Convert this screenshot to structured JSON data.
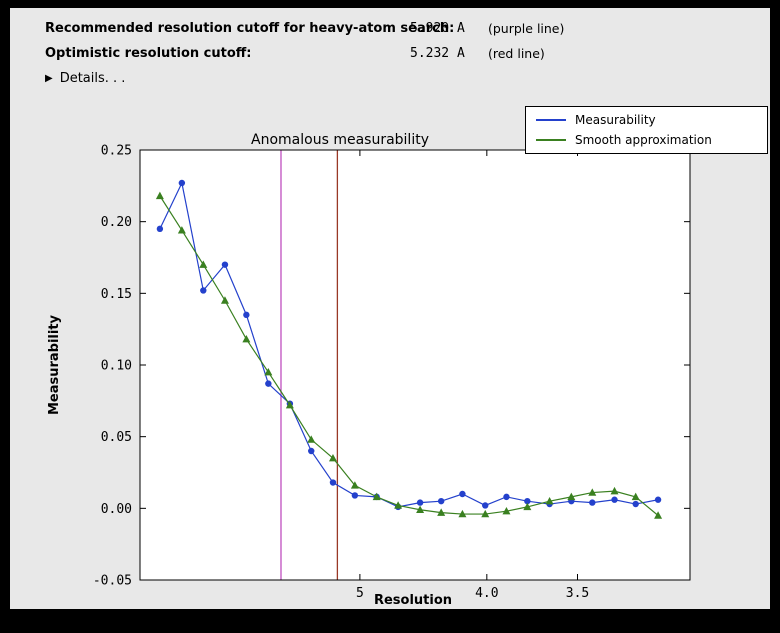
{
  "header": {
    "rows": [
      {
        "label": "Recommended resolution cutoff for heavy-atom search:",
        "value": "5.920 A",
        "note": "(purple line)"
      },
      {
        "label": "Optimistic resolution cutoff:",
        "value": "5.232 A",
        "note": "(red line)"
      }
    ],
    "details": {
      "icon": "▶",
      "label": "Details. . ."
    }
  },
  "chart_data": {
    "type": "line",
    "title": "Anomalous measurability",
    "xlabel": "Resolution",
    "ylabel": "Measurability",
    "legend_position": "top-right",
    "grid": false,
    "background": {
      "figure": "#e8e8e8",
      "axes": "#ffffff"
    },
    "ylim": [
      -0.05,
      0.25
    ],
    "x_range_resolution": [
      8.82,
      3.03
    ],
    "x_axis_scale": "linear in 1/resolution (reversed resolution in Angstrom)",
    "xticks": [
      {
        "value": 5.0,
        "label": "5"
      },
      {
        "value": 4.0,
        "label": "4.0"
      },
      {
        "value": 3.5,
        "label": "3.5"
      }
    ],
    "yticks": [
      {
        "value": -0.05,
        "label": "-0.05"
      },
      {
        "value": 0.0,
        "label": "0.00"
      },
      {
        "value": 0.05,
        "label": "0.05"
      },
      {
        "value": 0.1,
        "label": "0.10"
      },
      {
        "value": 0.15,
        "label": "0.15"
      },
      {
        "value": 0.2,
        "label": "0.20"
      },
      {
        "value": 0.25,
        "label": "0.25"
      }
    ],
    "x_resolution": [
      8.25,
      7.7,
      7.23,
      6.81,
      6.44,
      6.1,
      5.8,
      5.53,
      5.28,
      5.05,
      4.84,
      4.65,
      4.47,
      4.31,
      4.16,
      4.01,
      3.88,
      3.76,
      3.64,
      3.53,
      3.43,
      3.33,
      3.24,
      3.15
    ],
    "series": [
      {
        "name": "Measurability",
        "color": "#2441cc",
        "marker": "circle",
        "values": [
          0.195,
          0.227,
          0.152,
          0.17,
          0.135,
          0.087,
          0.073,
          0.04,
          0.018,
          0.009,
          0.008,
          0.001,
          0.004,
          0.005,
          0.01,
          0.002,
          0.008,
          0.005,
          0.003,
          0.005,
          0.004,
          0.006,
          0.003,
          0.006
        ]
      },
      {
        "name": "Smooth approximation",
        "color": "#3a8020",
        "marker": "triangle",
        "values": [
          0.218,
          0.194,
          0.17,
          0.145,
          0.118,
          0.095,
          0.072,
          0.048,
          0.035,
          0.016,
          0.008,
          0.002,
          -0.001,
          -0.003,
          -0.004,
          -0.004,
          -0.002,
          0.001,
          0.005,
          0.008,
          0.011,
          0.012,
          0.008,
          -0.005
        ]
      }
    ],
    "vlines": [
      {
        "label": "purple line",
        "resolution": 5.92,
        "color": "#bf4fbf"
      },
      {
        "label": "red line",
        "resolution": 5.232,
        "color": "#993826"
      }
    ]
  }
}
